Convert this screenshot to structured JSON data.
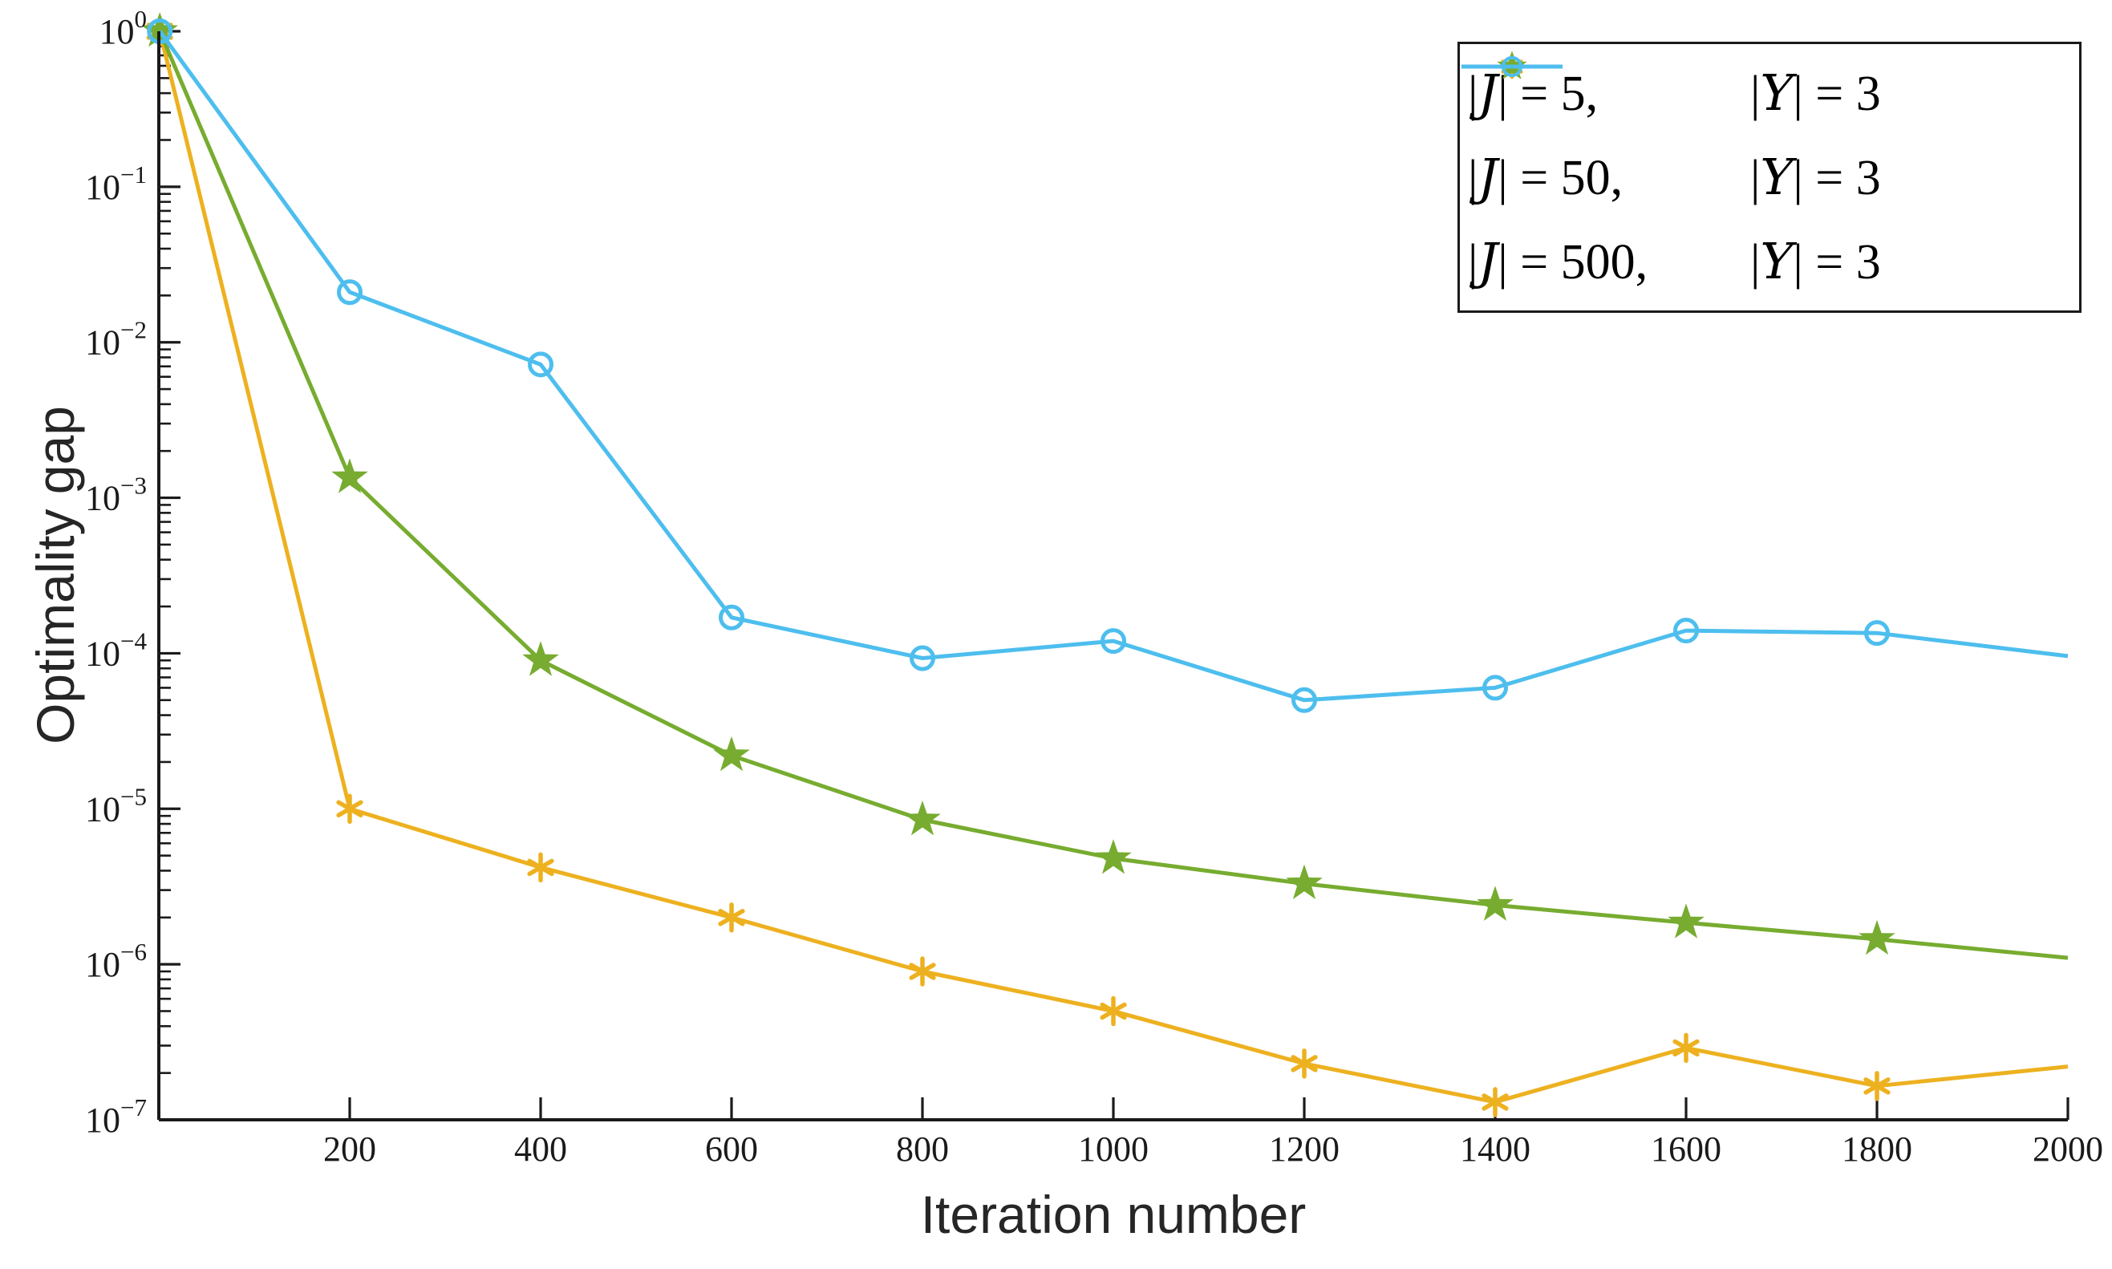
{
  "figure": {
    "kind": "matlab-style semilog line plot",
    "background_color": "#ffffff",
    "axis_color": "#1a1a1a"
  },
  "axes": {
    "x_label": "Iteration number",
    "y_label": "Optimality gap",
    "x_ticks": [
      200,
      400,
      600,
      800,
      1000,
      1200,
      1400,
      1600,
      1800,
      2000
    ],
    "y_tick_base": "10",
    "y_tick_exponents": [
      0,
      -1,
      -2,
      -3,
      -4,
      -5,
      -6,
      -7
    ],
    "tick_direction": "in",
    "box": "off"
  },
  "legend": {
    "position": "top-right",
    "border_color": "#1a1a1a",
    "items": [
      {
        "label": "|J| = 5,   |Y| = 3",
        "set_symbol": "J",
        "set_value": "5",
        "y_symbol": "Y",
        "y_value": "3",
        "color": "#EDB120",
        "marker": "asterisk"
      },
      {
        "label": "|J| = 50,  |Y| = 3",
        "set_symbol": "J",
        "set_value": "50",
        "y_symbol": "Y",
        "y_value": "3",
        "color": "#77AC30",
        "marker": "star"
      },
      {
        "label": "|J| = 500, |Y| = 3",
        "set_symbol": "J",
        "set_value": "500",
        "y_symbol": "Y",
        "y_value": "3",
        "color": "#4DBEEE",
        "marker": "circle"
      }
    ]
  },
  "chart_data": {
    "type": "line",
    "title": "",
    "xlabel": "Iteration number",
    "ylabel": "Optimality gap",
    "x_scale": "linear",
    "y_scale": "log",
    "xlim": [
      0,
      2000
    ],
    "ylim": [
      1e-07,
      1
    ],
    "grid": false,
    "legend_position": "top-right",
    "marker_on_last_point": false,
    "x": [
      1,
      200,
      400,
      600,
      800,
      1000,
      1200,
      1400,
      1600,
      1800,
      2000
    ],
    "series": [
      {
        "name": "|J| = 5, |Y| = 3",
        "color": "#EDB120",
        "marker": "asterisk",
        "values": [
          1.0,
          1e-05,
          4.2e-06,
          2e-06,
          9e-07,
          5e-07,
          2.3e-07,
          1.3e-07,
          2.9e-07,
          1.65e-07,
          2.2e-07
        ]
      },
      {
        "name": "|J| = 50, |Y| = 3",
        "color": "#77AC30",
        "marker": "star",
        "values": [
          1.0,
          0.00135,
          9e-05,
          2.2e-05,
          8.5e-06,
          4.8e-06,
          3.3e-06,
          2.4e-06,
          1.85e-06,
          1.45e-06,
          1.1e-06
        ]
      },
      {
        "name": "|J| = 500, |Y| = 3",
        "color": "#4DBEEE",
        "marker": "circle",
        "values": [
          1.0,
          0.021,
          0.0072,
          0.00017,
          9.3e-05,
          0.00012,
          5e-05,
          6e-05,
          0.00014,
          0.000135,
          9.6e-05
        ]
      }
    ]
  }
}
